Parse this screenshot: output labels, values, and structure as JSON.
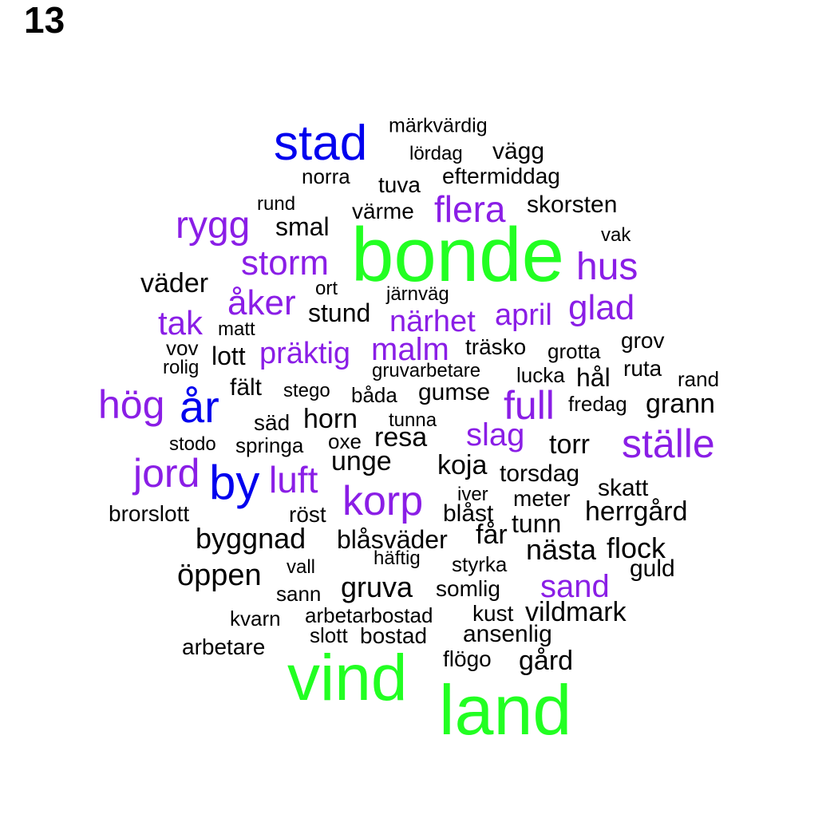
{
  "panel_number": "13",
  "colors": {
    "top": "#22ff22",
    "blue": "#0000ee",
    "purple": "#8a1ee6",
    "black": "#000000"
  },
  "words": [
    {
      "text": "bonde",
      "tier": "top"
    },
    {
      "text": "vind",
      "tier": "top"
    },
    {
      "text": "land",
      "tier": "top"
    },
    {
      "text": "stad",
      "tier": "blue"
    },
    {
      "text": "år",
      "tier": "blue"
    },
    {
      "text": "by",
      "tier": "blue"
    },
    {
      "text": "märkvärdig",
      "tier": "black"
    },
    {
      "text": "lördag",
      "tier": "black"
    },
    {
      "text": "vägg",
      "tier": "black"
    },
    {
      "text": "norra",
      "tier": "black"
    },
    {
      "text": "tuva",
      "tier": "black"
    },
    {
      "text": "eftermiddag",
      "tier": "black"
    },
    {
      "text": "rund",
      "tier": "black"
    },
    {
      "text": "värme",
      "tier": "black"
    },
    {
      "text": "flera",
      "tier": "purple"
    },
    {
      "text": "skorsten",
      "tier": "black"
    },
    {
      "text": "rygg",
      "tier": "purple"
    },
    {
      "text": "smal",
      "tier": "black"
    },
    {
      "text": "vak",
      "tier": "black"
    },
    {
      "text": "storm",
      "tier": "purple"
    },
    {
      "text": "hus",
      "tier": "purple"
    },
    {
      "text": "väder",
      "tier": "black"
    },
    {
      "text": "ort",
      "tier": "black"
    },
    {
      "text": "järnväg",
      "tier": "black"
    },
    {
      "text": "åker",
      "tier": "purple"
    },
    {
      "text": "glad",
      "tier": "purple"
    },
    {
      "text": "stund",
      "tier": "black"
    },
    {
      "text": "april",
      "tier": "purple"
    },
    {
      "text": "tak",
      "tier": "purple"
    },
    {
      "text": "närhet",
      "tier": "purple"
    },
    {
      "text": "matt",
      "tier": "black"
    },
    {
      "text": "grov",
      "tier": "black"
    },
    {
      "text": "vov",
      "tier": "black"
    },
    {
      "text": "lott",
      "tier": "black"
    },
    {
      "text": "präktig",
      "tier": "purple"
    },
    {
      "text": "malm",
      "tier": "purple"
    },
    {
      "text": "träsko",
      "tier": "black"
    },
    {
      "text": "grotta",
      "tier": "black"
    },
    {
      "text": "rolig",
      "tier": "black"
    },
    {
      "text": "gruvarbetare",
      "tier": "black"
    },
    {
      "text": "ruta",
      "tier": "black"
    },
    {
      "text": "lucka",
      "tier": "black"
    },
    {
      "text": "hål",
      "tier": "black"
    },
    {
      "text": "rand",
      "tier": "black"
    },
    {
      "text": "fält",
      "tier": "black"
    },
    {
      "text": "stego",
      "tier": "black"
    },
    {
      "text": "båda",
      "tier": "black"
    },
    {
      "text": "gumse",
      "tier": "black"
    },
    {
      "text": "hög",
      "tier": "purple"
    },
    {
      "text": "full",
      "tier": "purple"
    },
    {
      "text": "fredag",
      "tier": "black"
    },
    {
      "text": "grann",
      "tier": "black"
    },
    {
      "text": "säd",
      "tier": "black"
    },
    {
      "text": "horn",
      "tier": "black"
    },
    {
      "text": "tunna",
      "tier": "black"
    },
    {
      "text": "slag",
      "tier": "purple"
    },
    {
      "text": "resa",
      "tier": "black"
    },
    {
      "text": "torr",
      "tier": "black"
    },
    {
      "text": "ställe",
      "tier": "purple"
    },
    {
      "text": "stodo",
      "tier": "black"
    },
    {
      "text": "springa",
      "tier": "black"
    },
    {
      "text": "oxe",
      "tier": "black"
    },
    {
      "text": "unge",
      "tier": "black"
    },
    {
      "text": "koja",
      "tier": "black"
    },
    {
      "text": "torsdag",
      "tier": "black"
    },
    {
      "text": "jord",
      "tier": "purple"
    },
    {
      "text": "luft",
      "tier": "purple"
    },
    {
      "text": "skatt",
      "tier": "black"
    },
    {
      "text": "iver",
      "tier": "black"
    },
    {
      "text": "meter",
      "tier": "black"
    },
    {
      "text": "korp",
      "tier": "purple"
    },
    {
      "text": "brorslott",
      "tier": "black"
    },
    {
      "text": "röst",
      "tier": "black"
    },
    {
      "text": "blåst",
      "tier": "black"
    },
    {
      "text": "herrgård",
      "tier": "black"
    },
    {
      "text": "tunn",
      "tier": "black"
    },
    {
      "text": "byggnad",
      "tier": "black"
    },
    {
      "text": "blåsväder",
      "tier": "black"
    },
    {
      "text": "får",
      "tier": "black"
    },
    {
      "text": "nästa",
      "tier": "black"
    },
    {
      "text": "flock",
      "tier": "black"
    },
    {
      "text": "häftig",
      "tier": "black"
    },
    {
      "text": "vall",
      "tier": "black"
    },
    {
      "text": "styrka",
      "tier": "black"
    },
    {
      "text": "guld",
      "tier": "black"
    },
    {
      "text": "öppen",
      "tier": "black"
    },
    {
      "text": "sand",
      "tier": "purple"
    },
    {
      "text": "gruva",
      "tier": "black"
    },
    {
      "text": "sann",
      "tier": "black"
    },
    {
      "text": "somlig",
      "tier": "black"
    },
    {
      "text": "kust",
      "tier": "black"
    },
    {
      "text": "vildmark",
      "tier": "black"
    },
    {
      "text": "kvarn",
      "tier": "black"
    },
    {
      "text": "arbetarbostad",
      "tier": "black"
    },
    {
      "text": "slott",
      "tier": "black"
    },
    {
      "text": "bostad",
      "tier": "black"
    },
    {
      "text": "ansenlig",
      "tier": "black"
    },
    {
      "text": "arbetare",
      "tier": "black"
    },
    {
      "text": "flögo",
      "tier": "black"
    },
    {
      "text": "gård",
      "tier": "black"
    }
  ]
}
